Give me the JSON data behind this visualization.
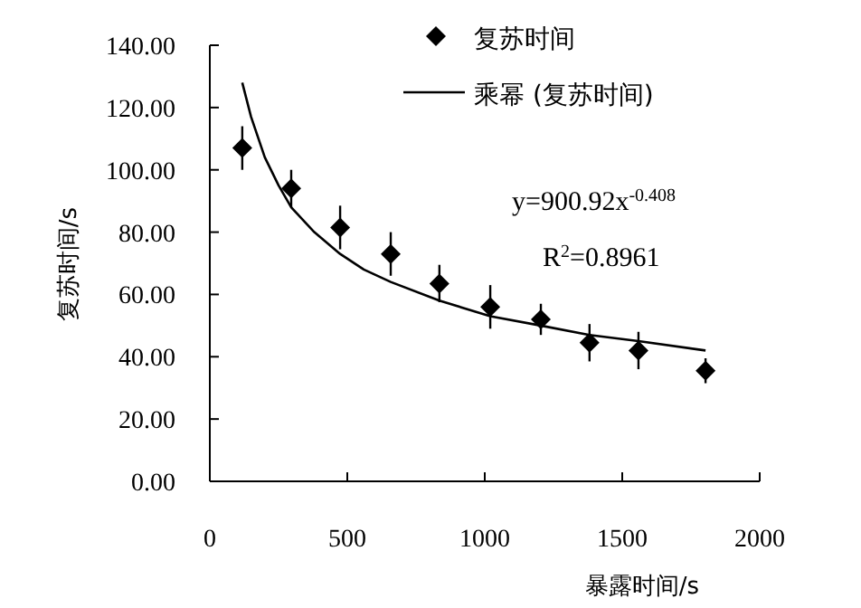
{
  "chart_data": {
    "type": "scatter",
    "xlabel": "暴露时间/s",
    "ylabel": "复苏时间/s",
    "xlim": [
      0,
      2000
    ],
    "xticks": [
      0,
      500,
      1000,
      1500,
      2000
    ],
    "ylim": [
      0,
      140
    ],
    "yticks": [
      {
        "value": 0,
        "label": "0.00"
      },
      {
        "value": 20,
        "label": "20.00"
      },
      {
        "value": 40,
        "label": "40.00"
      },
      {
        "value": 60,
        "label": "60.00"
      },
      {
        "value": 80,
        "label": "80.00"
      },
      {
        "value": 100,
        "label": "100.00"
      },
      {
        "value": 120,
        "label": "120.00"
      },
      {
        "value": 140,
        "label": "140.00"
      }
    ],
    "series": [
      {
        "name": "复苏时间",
        "marker": "diamond",
        "color": "#000000",
        "x": [
          118,
          296,
          474,
          658,
          835,
          1020,
          1204,
          1381,
          1559,
          1803
        ],
        "values": [
          107,
          94,
          81.5,
          73,
          63.5,
          56,
          52,
          44.5,
          42,
          35.5
        ],
        "errors": [
          7,
          6,
          7,
          7,
          6,
          7,
          5,
          6,
          6,
          4
        ]
      },
      {
        "name": "乘幂 (复苏时间)",
        "type": "line",
        "color": "#000000",
        "marker": "none",
        "x": [
          118,
          150,
          200,
          250,
          296,
          380,
          474,
          560,
          658,
          835,
          1020,
          1204,
          1381,
          1559,
          1803
        ],
        "values": [
          128,
          117,
          104,
          95,
          88,
          80,
          73,
          68,
          64,
          58,
          53,
          50,
          47,
          45,
          42
        ]
      }
    ],
    "annotations": [
      "y=900.92x$^{-0.408}$",
      "R$^{2}$=0.8961"
    ],
    "legend": "top right",
    "grid": false
  }
}
